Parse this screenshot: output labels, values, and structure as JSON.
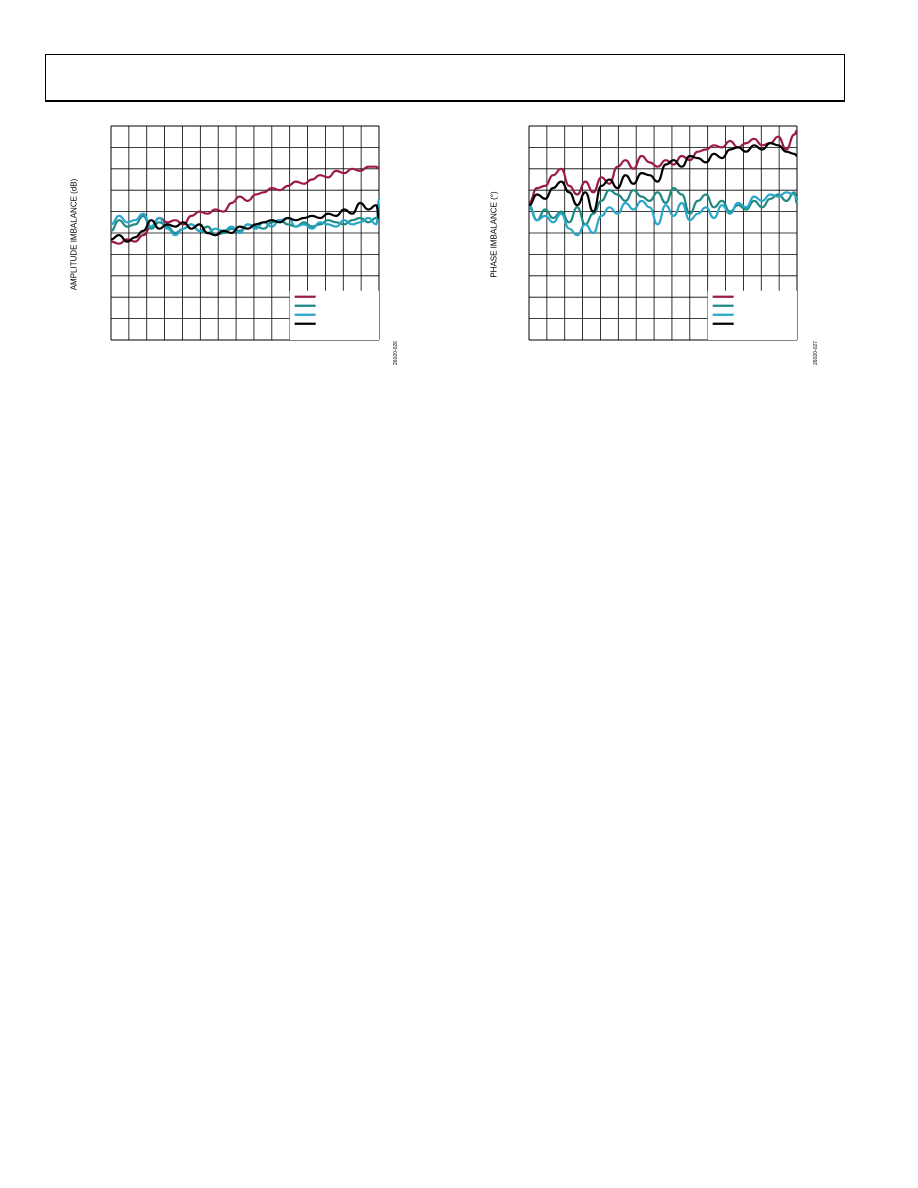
{
  "header": {
    "title": ""
  },
  "colors": {
    "maroon": "#9b1b45",
    "teal": "#1f8a84",
    "cyan": "#2aa7c8",
    "black": "#000000",
    "grid": "#000000"
  },
  "chart_data": [
    {
      "type": "line",
      "ylabel": "AMPLITUDE IMBALANCE (dB)",
      "fig_id": "26020-026",
      "grid": {
        "x_divisions": 15,
        "y_divisions": 10
      },
      "xlim": [
        0,
        100
      ],
      "ylim": [
        0,
        10
      ],
      "legend": {
        "placement": "bottom-right",
        "entries": [
          "",
          "",
          "",
          ""
        ]
      },
      "series": [
        {
          "color": "maroon",
          "x": [
            0,
            3,
            6,
            9,
            12,
            15,
            18,
            21,
            24,
            27,
            30,
            33,
            36,
            39,
            42,
            45,
            48,
            51,
            54,
            57,
            60,
            63,
            66,
            69,
            72,
            75,
            78,
            81,
            84,
            87,
            90,
            93,
            96,
            99,
            100
          ],
          "y": [
            4.6,
            4.5,
            4.7,
            4.6,
            4.9,
            5.3,
            5.7,
            5.5,
            5.6,
            5.4,
            5.8,
            6.0,
            5.9,
            6.1,
            6.0,
            6.4,
            6.7,
            6.5,
            6.8,
            6.9,
            7.1,
            7.0,
            7.2,
            7.4,
            7.3,
            7.5,
            7.7,
            7.6,
            7.9,
            7.8,
            8.0,
            7.9,
            8.1,
            8.1,
            8.0
          ]
        },
        {
          "color": "teal",
          "x": [
            0,
            3,
            6,
            9,
            12,
            15,
            18,
            21,
            24,
            27,
            30,
            33,
            36,
            39,
            42,
            45,
            48,
            51,
            54,
            57,
            60,
            63,
            66,
            69,
            72,
            75,
            78,
            81,
            84,
            87,
            90,
            93,
            96,
            99,
            100
          ],
          "y": [
            5.1,
            5.6,
            5.3,
            5.4,
            5.8,
            5.2,
            5.5,
            5.3,
            5.0,
            5.2,
            5.4,
            5.1,
            5.3,
            4.9,
            5.0,
            5.2,
            5.1,
            5.4,
            5.3,
            5.2,
            5.5,
            5.6,
            5.4,
            5.3,
            5.5,
            5.3,
            5.4,
            5.6,
            5.5,
            5.4,
            5.6,
            5.7,
            5.5,
            5.7,
            5.6
          ]
        },
        {
          "color": "cyan",
          "x": [
            0,
            3,
            6,
            9,
            12,
            15,
            18,
            21,
            24,
            27,
            30,
            33,
            36,
            39,
            42,
            45,
            48,
            51,
            54,
            57,
            60,
            63,
            66,
            69,
            72,
            75,
            78,
            81,
            84,
            87,
            90,
            93,
            96,
            99,
            100
          ],
          "y": [
            5.4,
            5.8,
            5.5,
            5.6,
            5.9,
            5.3,
            5.7,
            5.2,
            4.9,
            5.2,
            5.4,
            5.1,
            5.0,
            5.2,
            5.1,
            5.3,
            5.0,
            5.4,
            5.2,
            5.5,
            5.3,
            5.6,
            5.7,
            5.3,
            5.4,
            5.2,
            5.5,
            5.4,
            5.3,
            5.6,
            5.4,
            5.5,
            5.7,
            5.4,
            6.6
          ]
        },
        {
          "color": "black",
          "x": [
            0,
            3,
            6,
            9,
            12,
            15,
            18,
            21,
            24,
            27,
            30,
            33,
            36,
            39,
            42,
            45,
            48,
            51,
            54,
            57,
            60,
            63,
            66,
            69,
            72,
            75,
            78,
            81,
            84,
            87,
            90,
            93,
            96,
            99,
            100
          ],
          "y": [
            4.7,
            4.9,
            4.6,
            4.8,
            5.1,
            5.6,
            5.2,
            5.4,
            5.3,
            5.5,
            5.2,
            5.4,
            5.0,
            4.9,
            5.1,
            5.0,
            5.3,
            5.2,
            5.4,
            5.5,
            5.6,
            5.5,
            5.7,
            5.6,
            5.7,
            5.8,
            5.7,
            5.9,
            5.8,
            6.1,
            5.9,
            6.4,
            6.1,
            6.3,
            5.7
          ]
        }
      ]
    },
    {
      "type": "line",
      "ylabel": "PHASE IMBALANCE (°)",
      "fig_id": "26020-027",
      "grid": {
        "x_divisions": 15,
        "y_divisions": 10
      },
      "xlim": [
        0,
        100
      ],
      "ylim": [
        0,
        10
      ],
      "legend": {
        "placement": "bottom-right",
        "entries": [
          "",
          "",
          "",
          ""
        ]
      },
      "series": [
        {
          "color": "maroon",
          "x": [
            0,
            3,
            6,
            9,
            12,
            15,
            18,
            21,
            24,
            27,
            30,
            33,
            36,
            39,
            42,
            45,
            48,
            51,
            54,
            57,
            60,
            63,
            66,
            69,
            72,
            75,
            78,
            81,
            84,
            87,
            90,
            93,
            96,
            99,
            100
          ],
          "y": [
            6.4,
            7.1,
            7.2,
            7.7,
            8.0,
            7.2,
            6.8,
            7.4,
            6.9,
            7.6,
            7.3,
            8.1,
            8.4,
            8.0,
            8.6,
            8.3,
            8.1,
            8.4,
            8.2,
            8.6,
            8.4,
            8.8,
            8.9,
            9.1,
            9.0,
            9.3,
            9.0,
            9.2,
            9.4,
            9.1,
            9.2,
            9.5,
            8.9,
            9.6,
            9.8
          ]
        },
        {
          "color": "teal",
          "x": [
            0,
            3,
            6,
            9,
            12,
            15,
            18,
            21,
            24,
            27,
            30,
            33,
            36,
            39,
            42,
            45,
            48,
            51,
            54,
            57,
            60,
            63,
            66,
            69,
            72,
            75,
            78,
            81,
            84,
            87,
            90,
            93,
            96,
            99,
            100
          ],
          "y": [
            6.2,
            5.6,
            6.1,
            5.7,
            6.0,
            5.5,
            6.2,
            5.4,
            5.9,
            6.5,
            7.0,
            6.8,
            6.5,
            7.0,
            6.7,
            6.5,
            6.9,
            6.4,
            7.1,
            6.8,
            5.9,
            6.5,
            6.8,
            6.2,
            6.5,
            6.0,
            6.3,
            6.1,
            6.5,
            6.2,
            6.6,
            6.8,
            6.5,
            6.9,
            6.4
          ]
        },
        {
          "color": "cyan",
          "x": [
            0,
            3,
            6,
            9,
            12,
            15,
            18,
            21,
            24,
            27,
            30,
            33,
            36,
            39,
            42,
            45,
            48,
            51,
            54,
            57,
            60,
            63,
            66,
            69,
            72,
            75,
            78,
            81,
            84,
            87,
            90,
            93,
            96,
            99,
            100
          ],
          "y": [
            6.3,
            5.6,
            5.8,
            5.5,
            5.9,
            5.2,
            4.9,
            5.4,
            5.0,
            5.8,
            6.2,
            5.9,
            6.4,
            6.1,
            6.5,
            6.2,
            5.4,
            6.3,
            5.8,
            6.4,
            5.6,
            5.9,
            6.2,
            5.7,
            6.3,
            5.9,
            6.4,
            6.2,
            6.7,
            6.5,
            6.8,
            6.7,
            6.9,
            6.8,
            6.6
          ]
        },
        {
          "color": "black",
          "x": [
            0,
            3,
            6,
            9,
            12,
            15,
            18,
            21,
            24,
            27,
            30,
            33,
            36,
            39,
            42,
            45,
            48,
            51,
            54,
            57,
            60,
            63,
            66,
            69,
            72,
            75,
            78,
            81,
            84,
            87,
            90,
            93,
            96,
            99,
            100
          ],
          "y": [
            6.3,
            6.8,
            6.6,
            7.1,
            7.4,
            6.9,
            6.3,
            6.9,
            6.0,
            7.2,
            7.5,
            7.1,
            7.7,
            7.3,
            7.8,
            7.7,
            7.4,
            8.2,
            8.4,
            8.1,
            8.6,
            8.5,
            8.3,
            8.7,
            8.5,
            8.9,
            9.0,
            8.8,
            9.1,
            8.9,
            9.2,
            9.1,
            8.8,
            8.7,
            8.6
          ]
        }
      ]
    }
  ]
}
